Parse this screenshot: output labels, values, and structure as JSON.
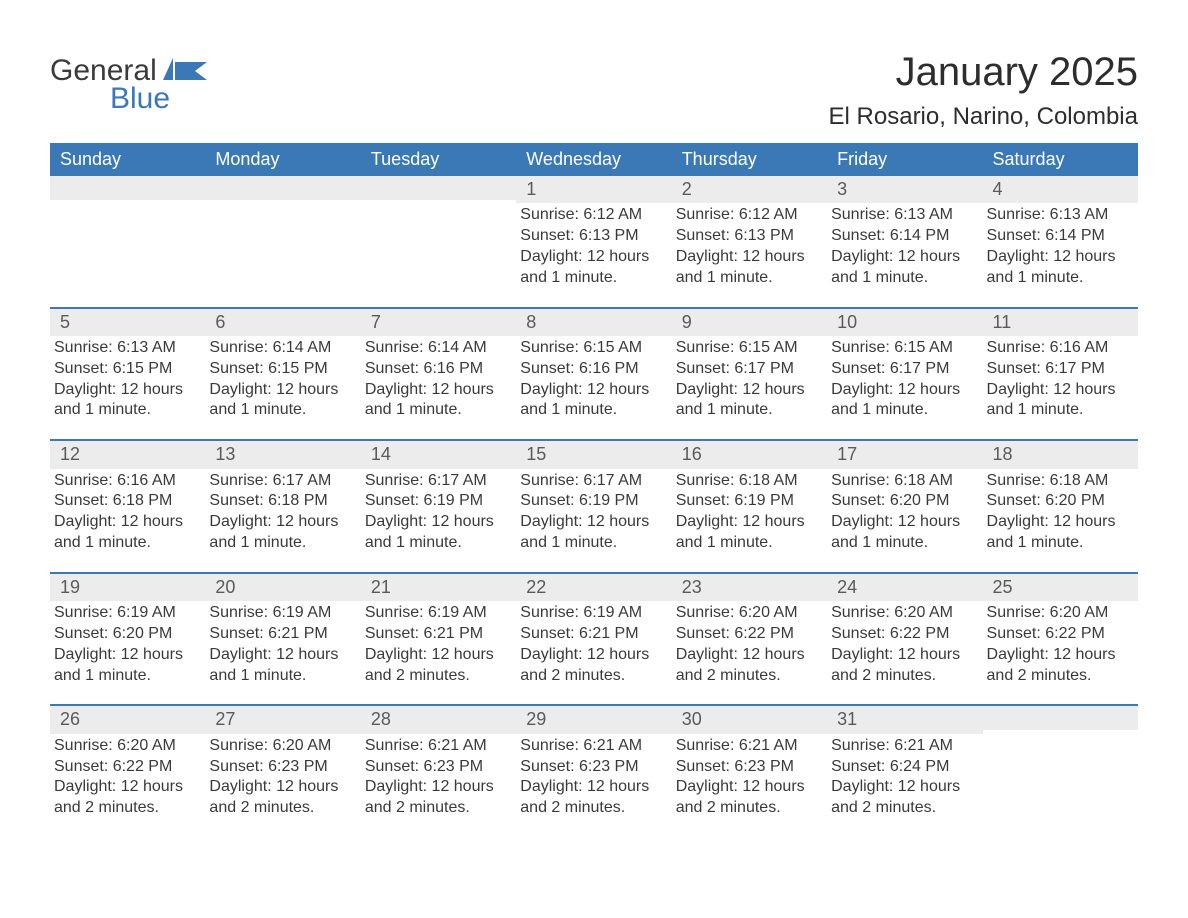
{
  "logo": {
    "general": "General",
    "blue": "Blue"
  },
  "title": "January 2025",
  "location": "El Rosario, Narino, Colombia",
  "colors": {
    "header_bg": "#3a78b6",
    "header_text": "#ffffff",
    "daynum_bg": "#ececec",
    "daynum_text": "#5a5a5a",
    "body_text": "#3a3a3a",
    "page_bg": "#ffffff",
    "row_border": "#3a78b6",
    "logo_blue": "#3a78b6"
  },
  "typography": {
    "title_fontsize": 40,
    "subtitle_fontsize": 24,
    "weekday_fontsize": 18,
    "daynum_fontsize": 18,
    "body_fontsize": 16,
    "font_family": "Arial"
  },
  "weekdays": [
    "Sunday",
    "Monday",
    "Tuesday",
    "Wednesday",
    "Thursday",
    "Friday",
    "Saturday"
  ],
  "weeks": [
    [
      {},
      {},
      {},
      {
        "day": "1",
        "sunrise": "Sunrise: 6:12 AM",
        "sunset": "Sunset: 6:13 PM",
        "daylight": "Daylight: 12 hours and 1 minute."
      },
      {
        "day": "2",
        "sunrise": "Sunrise: 6:12 AM",
        "sunset": "Sunset: 6:13 PM",
        "daylight": "Daylight: 12 hours and 1 minute."
      },
      {
        "day": "3",
        "sunrise": "Sunrise: 6:13 AM",
        "sunset": "Sunset: 6:14 PM",
        "daylight": "Daylight: 12 hours and 1 minute."
      },
      {
        "day": "4",
        "sunrise": "Sunrise: 6:13 AM",
        "sunset": "Sunset: 6:14 PM",
        "daylight": "Daylight: 12 hours and 1 minute."
      }
    ],
    [
      {
        "day": "5",
        "sunrise": "Sunrise: 6:13 AM",
        "sunset": "Sunset: 6:15 PM",
        "daylight": "Daylight: 12 hours and 1 minute."
      },
      {
        "day": "6",
        "sunrise": "Sunrise: 6:14 AM",
        "sunset": "Sunset: 6:15 PM",
        "daylight": "Daylight: 12 hours and 1 minute."
      },
      {
        "day": "7",
        "sunrise": "Sunrise: 6:14 AM",
        "sunset": "Sunset: 6:16 PM",
        "daylight": "Daylight: 12 hours and 1 minute."
      },
      {
        "day": "8",
        "sunrise": "Sunrise: 6:15 AM",
        "sunset": "Sunset: 6:16 PM",
        "daylight": "Daylight: 12 hours and 1 minute."
      },
      {
        "day": "9",
        "sunrise": "Sunrise: 6:15 AM",
        "sunset": "Sunset: 6:17 PM",
        "daylight": "Daylight: 12 hours and 1 minute."
      },
      {
        "day": "10",
        "sunrise": "Sunrise: 6:15 AM",
        "sunset": "Sunset: 6:17 PM",
        "daylight": "Daylight: 12 hours and 1 minute."
      },
      {
        "day": "11",
        "sunrise": "Sunrise: 6:16 AM",
        "sunset": "Sunset: 6:17 PM",
        "daylight": "Daylight: 12 hours and 1 minute."
      }
    ],
    [
      {
        "day": "12",
        "sunrise": "Sunrise: 6:16 AM",
        "sunset": "Sunset: 6:18 PM",
        "daylight": "Daylight: 12 hours and 1 minute."
      },
      {
        "day": "13",
        "sunrise": "Sunrise: 6:17 AM",
        "sunset": "Sunset: 6:18 PM",
        "daylight": "Daylight: 12 hours and 1 minute."
      },
      {
        "day": "14",
        "sunrise": "Sunrise: 6:17 AM",
        "sunset": "Sunset: 6:19 PM",
        "daylight": "Daylight: 12 hours and 1 minute."
      },
      {
        "day": "15",
        "sunrise": "Sunrise: 6:17 AM",
        "sunset": "Sunset: 6:19 PM",
        "daylight": "Daylight: 12 hours and 1 minute."
      },
      {
        "day": "16",
        "sunrise": "Sunrise: 6:18 AM",
        "sunset": "Sunset: 6:19 PM",
        "daylight": "Daylight: 12 hours and 1 minute."
      },
      {
        "day": "17",
        "sunrise": "Sunrise: 6:18 AM",
        "sunset": "Sunset: 6:20 PM",
        "daylight": "Daylight: 12 hours and 1 minute."
      },
      {
        "day": "18",
        "sunrise": "Sunrise: 6:18 AM",
        "sunset": "Sunset: 6:20 PM",
        "daylight": "Daylight: 12 hours and 1 minute."
      }
    ],
    [
      {
        "day": "19",
        "sunrise": "Sunrise: 6:19 AM",
        "sunset": "Sunset: 6:20 PM",
        "daylight": "Daylight: 12 hours and 1 minute."
      },
      {
        "day": "20",
        "sunrise": "Sunrise: 6:19 AM",
        "sunset": "Sunset: 6:21 PM",
        "daylight": "Daylight: 12 hours and 1 minute."
      },
      {
        "day": "21",
        "sunrise": "Sunrise: 6:19 AM",
        "sunset": "Sunset: 6:21 PM",
        "daylight": "Daylight: 12 hours and 2 minutes."
      },
      {
        "day": "22",
        "sunrise": "Sunrise: 6:19 AM",
        "sunset": "Sunset: 6:21 PM",
        "daylight": "Daylight: 12 hours and 2 minutes."
      },
      {
        "day": "23",
        "sunrise": "Sunrise: 6:20 AM",
        "sunset": "Sunset: 6:22 PM",
        "daylight": "Daylight: 12 hours and 2 minutes."
      },
      {
        "day": "24",
        "sunrise": "Sunrise: 6:20 AM",
        "sunset": "Sunset: 6:22 PM",
        "daylight": "Daylight: 12 hours and 2 minutes."
      },
      {
        "day": "25",
        "sunrise": "Sunrise: 6:20 AM",
        "sunset": "Sunset: 6:22 PM",
        "daylight": "Daylight: 12 hours and 2 minutes."
      }
    ],
    [
      {
        "day": "26",
        "sunrise": "Sunrise: 6:20 AM",
        "sunset": "Sunset: 6:22 PM",
        "daylight": "Daylight: 12 hours and 2 minutes."
      },
      {
        "day": "27",
        "sunrise": "Sunrise: 6:20 AM",
        "sunset": "Sunset: 6:23 PM",
        "daylight": "Daylight: 12 hours and 2 minutes."
      },
      {
        "day": "28",
        "sunrise": "Sunrise: 6:21 AM",
        "sunset": "Sunset: 6:23 PM",
        "daylight": "Daylight: 12 hours and 2 minutes."
      },
      {
        "day": "29",
        "sunrise": "Sunrise: 6:21 AM",
        "sunset": "Sunset: 6:23 PM",
        "daylight": "Daylight: 12 hours and 2 minutes."
      },
      {
        "day": "30",
        "sunrise": "Sunrise: 6:21 AM",
        "sunset": "Sunset: 6:23 PM",
        "daylight": "Daylight: 12 hours and 2 minutes."
      },
      {
        "day": "31",
        "sunrise": "Sunrise: 6:21 AM",
        "sunset": "Sunset: 6:24 PM",
        "daylight": "Daylight: 12 hours and 2 minutes."
      },
      {}
    ]
  ]
}
